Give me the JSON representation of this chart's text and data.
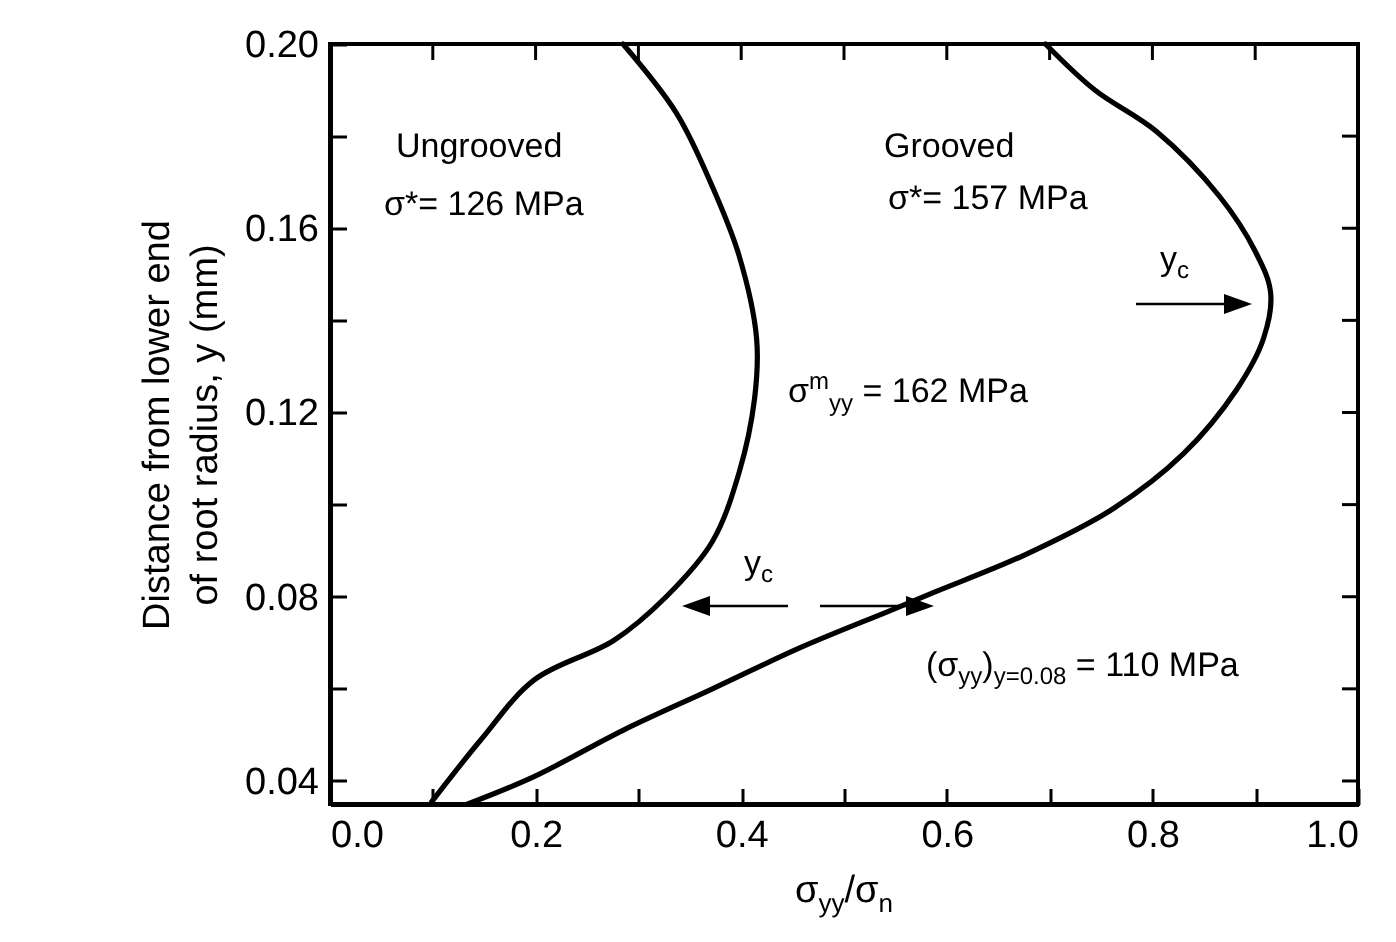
{
  "chart_data": {
    "type": "line",
    "xlabel": "σ$_{yy}$/σ$_{n}$",
    "ylabel": "Distance from lower end\nof root radius, y (mm)",
    "xlim": [
      0,
      1
    ],
    "ylim": [
      0.035,
      0.2
    ],
    "xticks": [
      {
        "value": 0,
        "label": "0.0"
      },
      {
        "value": 0.1,
        "label": null
      },
      0.2,
      {
        "value": 0.3,
        "label": null
      },
      0.4,
      {
        "value": 0.5,
        "label": null
      },
      0.6,
      {
        "value": 0.7,
        "label": null
      },
      0.8,
      {
        "value": 0.9,
        "label": null
      },
      {
        "value": 1,
        "label": "1.0"
      }
    ],
    "yticks": [
      0.04,
      {
        "value": 0.06,
        "label": null
      },
      0.08,
      {
        "value": 0.1,
        "label": null
      },
      0.12,
      {
        "value": 0.14,
        "label": null
      },
      0.16,
      {
        "value": 0.18,
        "label": null
      },
      {
        "value": 0.2,
        "label": "0.20"
      }
    ],
    "grid": false,
    "line_style": "solid",
    "marker": "none",
    "series": [
      {
        "color": "#000000",
        "x": [
          0.099,
          0.147,
          0.199,
          0.276,
          0.327,
          0.372,
          0.398,
          0.413,
          0.415,
          0.398,
          0.372,
          0.337,
          0.285
        ],
        "values": [
          0.0355,
          0.049,
          0.062,
          0.0705,
          0.08,
          0.092,
          0.107,
          0.123,
          0.136,
          0.154,
          0.169,
          0.185,
          0.2
        ]
      },
      {
        "color": "#000000",
        "x": [
          0.134,
          0.199,
          0.285,
          0.372,
          0.458,
          0.545,
          0.588,
          0.675,
          0.761,
          0.83,
          0.882,
          0.908,
          0.915,
          0.9,
          0.865,
          0.804,
          0.744,
          0.696
        ],
        "values": [
          0.035,
          0.041,
          0.051,
          0.06,
          0.069,
          0.077,
          0.081,
          0.089,
          0.099,
          0.111,
          0.125,
          0.136,
          0.146,
          0.155,
          0.167,
          0.181,
          0.19,
          0.2
        ]
      }
    ],
    "annotations": [
      "Ungrooved",
      "σ*= 126 MPa",
      "Grooved",
      "σ*= 157 MPa",
      "σ$^{m}$$_{yy}$ = 162 MPa",
      "y$_{c}$",
      "y$_{c}$",
      "(σ$_{yy}$)$_{y=0.08}$ = 110 MPa"
    ]
  }
}
